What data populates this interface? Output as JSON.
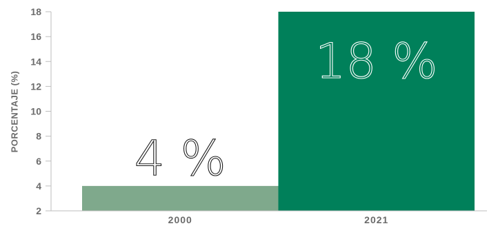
{
  "chart_data": {
    "type": "bar",
    "categories": [
      "2000",
      "2021"
    ],
    "values": [
      4,
      18
    ],
    "data_labels": [
      "4 %",
      "18 %"
    ],
    "title": "",
    "xlabel": "",
    "ylabel": "PORCENTAJE (%)",
    "ylim": [
      2,
      18
    ],
    "yticks": [
      "2",
      "4",
      "6",
      "8",
      "10",
      "12",
      "14",
      "16",
      "18"
    ],
    "grid": false,
    "legend": "none",
    "colors": {
      "bars": [
        "#7fa98c",
        "#00805a"
      ],
      "axis": "#bdbdbd",
      "tick_text": "#6b6b6b",
      "data_label_on_light": "#1a1a1a",
      "data_label_on_dark": "#ffffff"
    }
  }
}
